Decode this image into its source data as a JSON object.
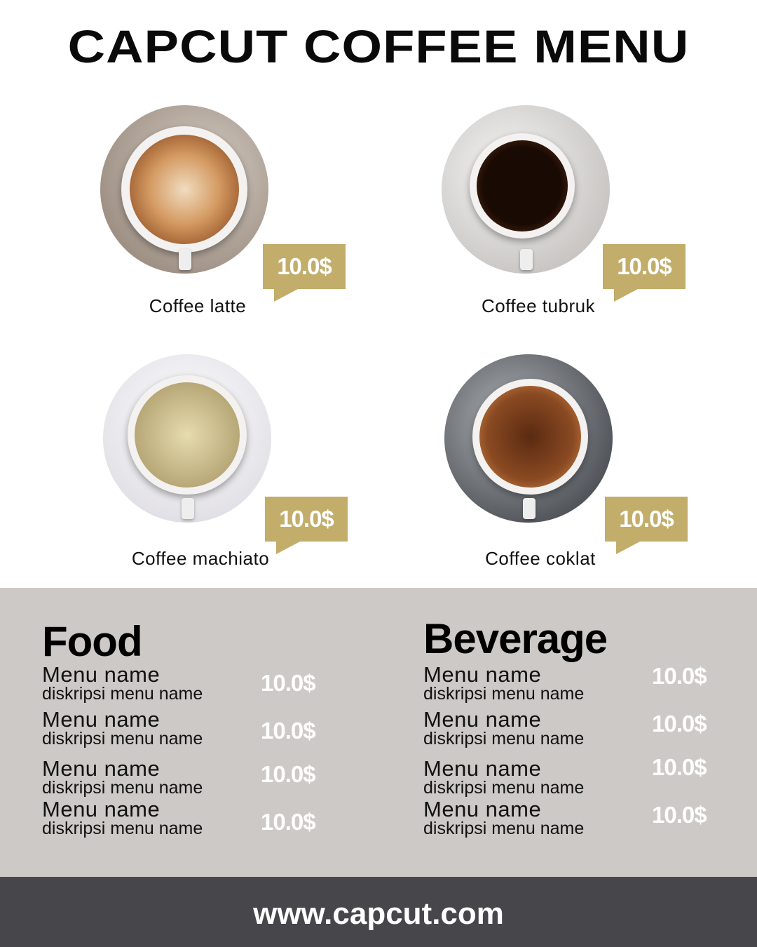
{
  "title": "CAPCUT COFFEE MENU",
  "colors": {
    "accent": "#c2ad6a",
    "band": "#cdc9c6",
    "footer": "#47464b"
  },
  "coffees": [
    {
      "name": "Coffee latte",
      "price": "10.0$"
    },
    {
      "name": "Coffee tubruk",
      "price": "10.0$"
    },
    {
      "name": "Coffee machiato",
      "price": "10.0$"
    },
    {
      "name": "Coffee coklat",
      "price": "10.0$"
    }
  ],
  "food": {
    "title": "Food",
    "items": [
      {
        "name": "Menu name",
        "desc": "diskripsi menu name",
        "price": "10.0$"
      },
      {
        "name": "Menu name",
        "desc": "diskripsi menu name",
        "price": "10.0$"
      },
      {
        "name": "Menu name",
        "desc": "diskripsi menu name",
        "price": "10.0$"
      },
      {
        "name": "Menu name",
        "desc": "diskripsi menu name",
        "price": "10.0$"
      }
    ]
  },
  "beverage": {
    "title": "Beverage",
    "items": [
      {
        "name": "Menu name",
        "desc": "diskripsi menu name",
        "price": "10.0$"
      },
      {
        "name": "Menu name",
        "desc": "diskripsi menu name",
        "price": "10.0$"
      },
      {
        "name": "Menu name",
        "desc": "diskripsi menu name",
        "price": "10.0$"
      },
      {
        "name": "Menu name",
        "desc": "diskripsi menu name",
        "price": "10.0$"
      }
    ]
  },
  "footer": {
    "url": "www.capcut.com"
  }
}
